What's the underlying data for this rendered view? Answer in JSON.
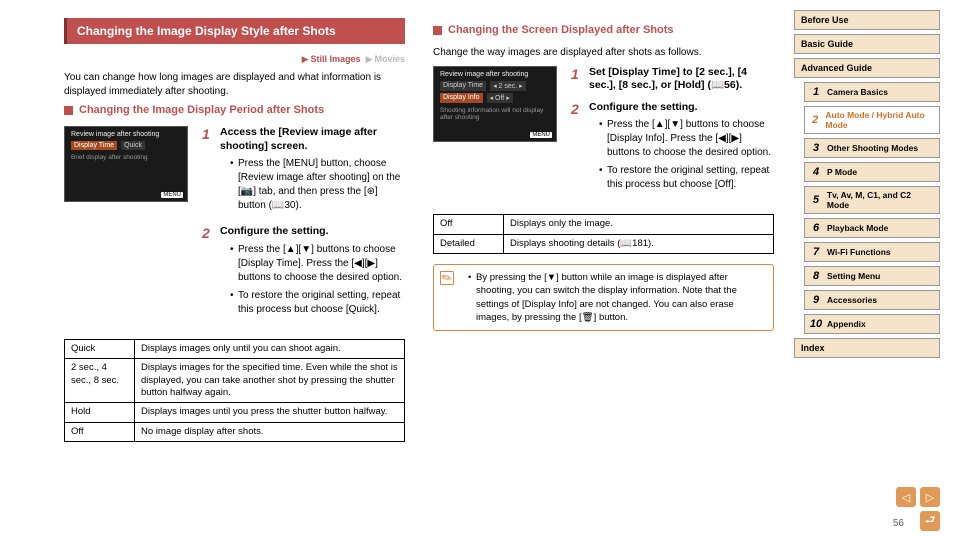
{
  "pageNumber": "56",
  "left": {
    "title": "Changing the Image Display Style after Shots",
    "tags": {
      "still": "Still Images",
      "movies": "Movies"
    },
    "intro": "You can change how long images are displayed and what information is displayed immediately after shooting.",
    "sub": "Changing the Image Display Period after Shots",
    "screen": {
      "header": "Review image after shooting",
      "row1lbl": "Display Time",
      "row1val": "Quick",
      "note": "Brief display after shooting",
      "menu": "MENU"
    },
    "steps": [
      {
        "title": "Access the [Review image after shooting] screen.",
        "bullets": [
          "Press the [MENU] button, choose [Review image after shooting] on the [📷] tab, and then press the [⊛] button (📖30)."
        ]
      },
      {
        "title": "Configure the setting.",
        "bullets": [
          "Press the [▲][▼] buttons to choose [Display Time]. Press the [◀][▶] buttons to choose the desired option.",
          "To restore the original setting, repeat this process but choose [Quick]."
        ]
      }
    ],
    "table": [
      [
        "Quick",
        "Displays images only until you can shoot again."
      ],
      [
        "2 sec., 4 sec., 8 sec.",
        "Displays images for the specified time. Even while the shot is displayed, you can take another shot by pressing the shutter button halfway again."
      ],
      [
        "Hold",
        "Displays images until you press the shutter button halfway."
      ],
      [
        "Off",
        "No image display after shots."
      ]
    ]
  },
  "right": {
    "sub": "Changing the Screen Displayed after Shots",
    "intro": "Change the way images are displayed after shots as follows.",
    "screen": {
      "header": "Review image after shooting",
      "row1lbl": "Display Time",
      "row1val": "◂ 2 sec.    ▸",
      "row2lbl": "Display Info",
      "row2val": "◂ Off         ▸",
      "note": "Shooting information will not display after shooting",
      "menu": "MENU"
    },
    "steps": [
      {
        "title": "Set [Display Time] to [2 sec.], [4 sec.], [8 sec.], or [Hold] (📖56)."
      },
      {
        "title": "Configure the setting.",
        "bullets": [
          "Press the [▲][▼] buttons to choose [Display Info]. Press the [◀][▶] buttons to choose the desired option.",
          "To restore the original setting, repeat this process but choose [Off]."
        ]
      }
    ],
    "table": [
      [
        "Off",
        "Displays only the image."
      ],
      [
        "Detailed",
        "Displays shooting details (📖181)."
      ]
    ],
    "note": "By pressing the [▼] button while an image is displayed after shooting, you can switch the display information. Note that the settings of [Display Info] are not changed. You can also erase images, by pressing the [🗑] button."
  },
  "nav": {
    "top": [
      "Before Use",
      "Basic Guide",
      "Advanced Guide"
    ],
    "subs": [
      {
        "n": "1",
        "t": "Camera Basics"
      },
      {
        "n": "2",
        "t": "Auto Mode / Hybrid Auto Mode"
      },
      {
        "n": "3",
        "t": "Other Shooting Modes"
      },
      {
        "n": "4",
        "t": "P Mode"
      },
      {
        "n": "5",
        "t": "Tv, Av, M, C1, and C2 Mode"
      },
      {
        "n": "6",
        "t": "Playback Mode"
      },
      {
        "n": "7",
        "t": "Wi-Fi Functions"
      },
      {
        "n": "8",
        "t": "Setting Menu"
      },
      {
        "n": "9",
        "t": "Accessories"
      },
      {
        "n": "10",
        "t": "Appendix"
      }
    ],
    "index": "Index"
  }
}
